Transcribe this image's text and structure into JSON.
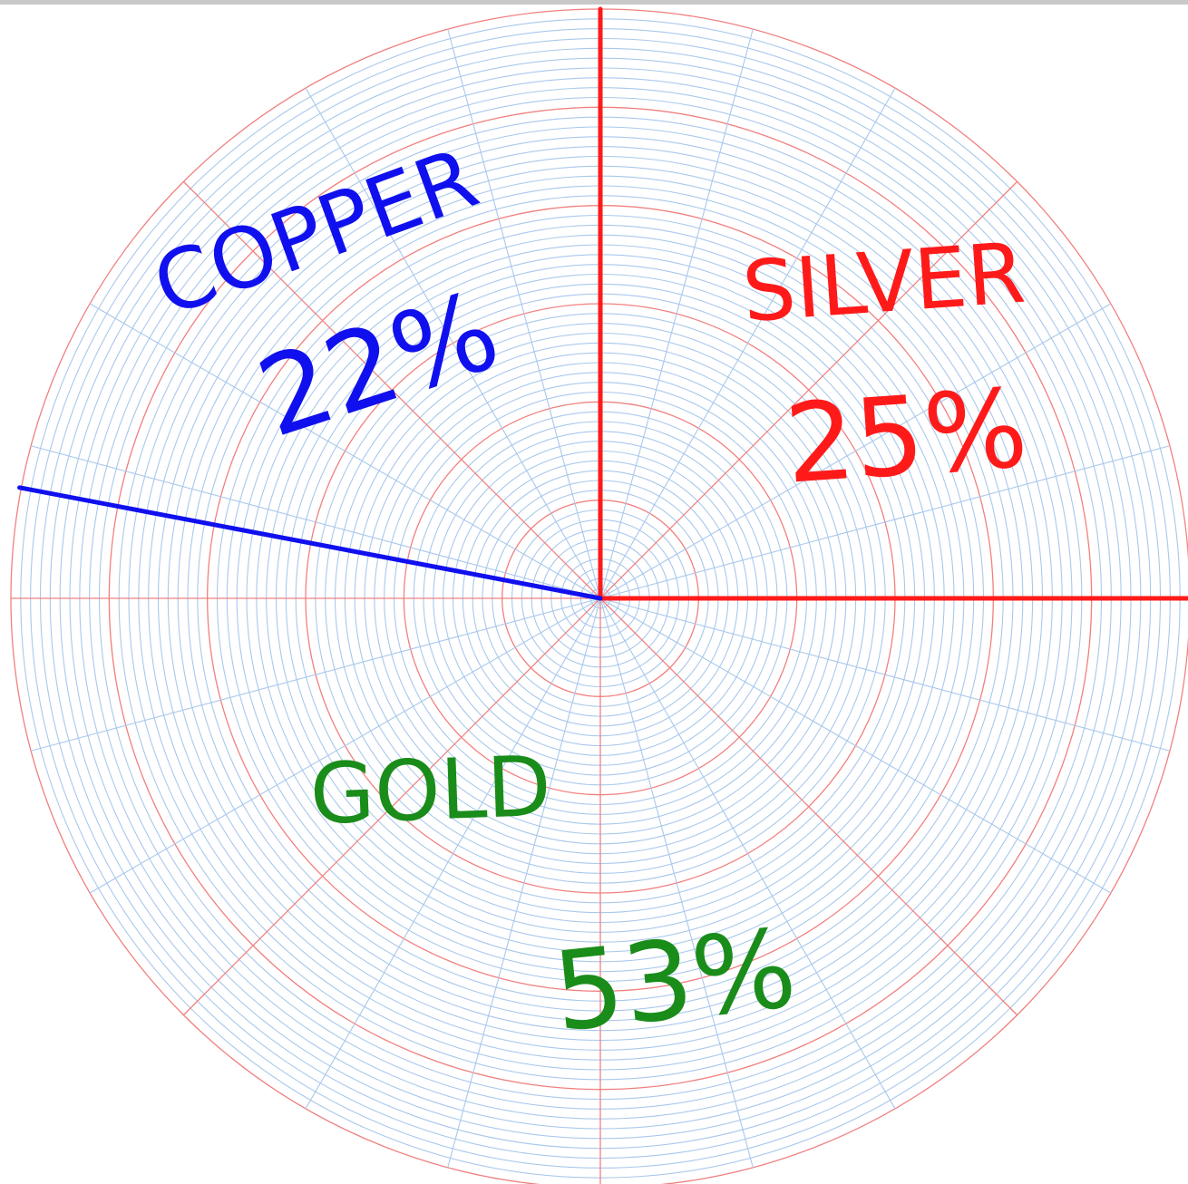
{
  "chart_data": {
    "type": "pie",
    "categories": [
      "SILVER",
      "COPPER",
      "GOLD"
    ],
    "values": [
      25,
      22,
      53
    ],
    "value_labels": [
      "25%",
      "22%",
      "53%"
    ],
    "colors": [
      "#ff1a1a",
      "#1010ee",
      "#1a8c1a"
    ]
  }
}
